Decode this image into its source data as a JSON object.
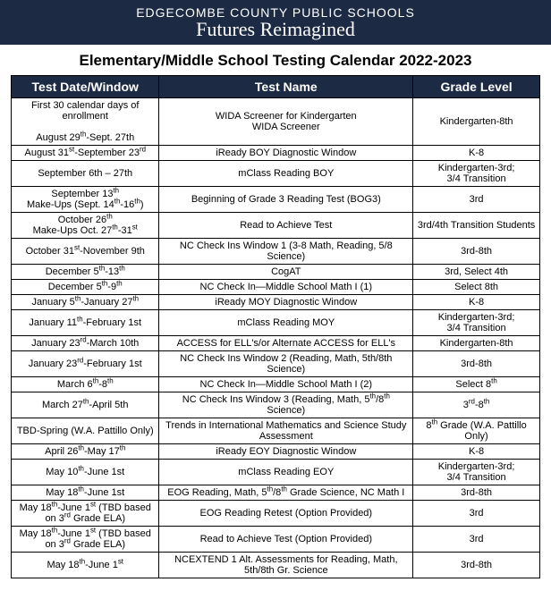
{
  "header": {
    "org": "EDGECOMBE COUNTY PUBLIC SCHOOLS",
    "tagline": "Futures Reimagined"
  },
  "page_title": "Elementary/Middle School Testing Calendar 2022-2023",
  "table": {
    "background_color": "#ffffff",
    "header_bg": "#1c2a44",
    "header_fg": "#ffffff",
    "border_color": "#000000",
    "font_size_pt": 11,
    "columns": [
      {
        "label": "Test Date/Window",
        "width_pct": 28
      },
      {
        "label": "Test Name",
        "width_pct": 48
      },
      {
        "label": "Grade Level",
        "width_pct": 24
      }
    ],
    "rows": [
      {
        "date_html": "First 30 calendar days of enrollment<br><br>August 29<sup>th</sup>-Sept. 27th",
        "name_html": "WIDA Screener for Kindergarten<br>WIDA Screener",
        "grade_html": "Kindergarten-8th"
      },
      {
        "date_html": "August 31<sup>st</sup>-September 23<sup>rd</sup>",
        "name_html": "iReady BOY Diagnostic Window",
        "grade_html": "K-8"
      },
      {
        "date_html": "September 6th – 27th",
        "name_html": "mClass Reading BOY",
        "grade_html": "Kindergarten-3rd;<br>3/4 Transition"
      },
      {
        "date_html": "September 13<sup>th</sup><br>Make-Ups (Sept. 14<sup>th</sup>-16<sup>th</sup>)",
        "name_html": "Beginning of Grade 3 Reading Test (BOG3)",
        "grade_html": "3rd"
      },
      {
        "date_html": "October 26<sup>th</sup><br>Make-Ups Oct. 27<sup>th</sup>-31<sup>st</sup>",
        "name_html": "Read to Achieve Test",
        "grade_html": "3rd/4th Transition Students"
      },
      {
        "date_html": "October 31<sup>st</sup>-November 9th",
        "name_html": "NC Check Ins Window 1 (3-8 Math, Reading, 5/8 Science)",
        "grade_html": "3rd-8th"
      },
      {
        "date_html": "December 5<sup>th</sup>-13<sup>th</sup>",
        "name_html": "CogAT",
        "grade_html": "3rd, Select 4th"
      },
      {
        "date_html": "December 5<sup>th</sup>-9<sup>th</sup>",
        "name_html": "NC Check In—Middle School Math I (1)",
        "grade_html": "Select 8th"
      },
      {
        "date_html": "January 5<sup>th</sup>-January 27<sup>th</sup>",
        "name_html": "iReady MOY Diagnostic Window",
        "grade_html": "K-8"
      },
      {
        "date_html": "January 11<sup>th</sup>-February 1st",
        "name_html": "mClass Reading MOY",
        "grade_html": "Kindergarten-3rd;<br>3/4 Transition"
      },
      {
        "date_html": "January 23<sup>rd</sup>-March 10th",
        "name_html": "ACCESS for ELL's/or Alternate ACCESS for ELL's",
        "grade_html": "Kindergarten-8th"
      },
      {
        "date_html": "January 23<sup>rd</sup>-February 1st",
        "name_html": "NC Check Ins Window 2 (Reading, Math, 5th/8th Science)",
        "grade_html": "3rd-8th"
      },
      {
        "date_html": "March 6<sup>th</sup>-8<sup>th</sup>",
        "name_html": "NC Check In—Middle School Math I (2)",
        "grade_html": "Select 8<sup>th</sup>"
      },
      {
        "date_html": "March 27<sup>th</sup>-April 5th",
        "name_html": "NC Check Ins Window 3 (Reading, Math, 5<sup>th</sup>/8<sup>th</sup> Science)",
        "grade_html": "3<sup>rd</sup>-8<sup>th</sup>"
      },
      {
        "date_html": "TBD-Spring (W.A. Pattillo Only)",
        "name_html": "Trends in International Mathematics and Science Study Assessment",
        "grade_html": "8<sup>th</sup> Grade (W.A. Pattillo Only)"
      },
      {
        "date_html": "April 26<sup>th</sup>-May 17<sup>th</sup>",
        "name_html": "iReady EOY Diagnostic Window",
        "grade_html": "K-8"
      },
      {
        "date_html": "May 10<sup>th</sup>-June 1st",
        "name_html": "mClass Reading EOY",
        "grade_html": "Kindergarten-3rd;<br>3/4 Transition"
      },
      {
        "date_html": "May 18<sup>th</sup>-June 1st",
        "name_html": "EOG Reading, Math, 5<sup>th</sup>/8<sup>th</sup> Grade Science, NC Math I",
        "grade_html": "3rd-8th"
      },
      {
        "date_html": "May 18<sup>th</sup>-June 1<sup>st</sup> (TBD based on 3<sup>rd</sup> Grade ELA)",
        "name_html": "EOG Reading Retest (Option Provided)",
        "grade_html": "3rd"
      },
      {
        "date_html": "May 18<sup>th</sup>-June 1<sup>st</sup> (TBD based on 3<sup>rd</sup> Grade ELA)",
        "name_html": "Read to Achieve Test (Option Provided)",
        "grade_html": "3rd"
      },
      {
        "date_html": "May 18<sup>th</sup>-June 1<sup>st</sup>",
        "name_html": "NCEXTEND 1 Alt. Assessments for Reading, Math, 5th/8th Gr. Science",
        "grade_html": "3rd-8th"
      }
    ]
  }
}
